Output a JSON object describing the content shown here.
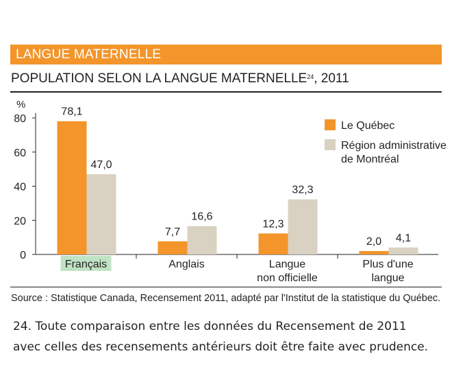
{
  "section_header": "LANGUE MATERNELLE",
  "chart_title": "POPULATION SELON LA LANGUE MATERNELLE",
  "chart_title_footnote": "24",
  "chart_title_year": ", 2011",
  "source": "Source : Statistique Canada, Recensement 2011, adapté par l'Institut de la statistique du Québec.",
  "footnote_lines": [
    "24. Toute comparaison entre les données du Recensement de 2011",
    "avec celles des recensements antérieurs doit être faite avec prudence."
  ],
  "colors": {
    "header_orange": "#f3952a",
    "series_quebec": "#f3952a",
    "series_montreal": "#d9d1c1",
    "highlight": "#bfe3c4"
  },
  "chart_data": {
    "type": "bar",
    "ylabel": "%",
    "ylim": [
      0,
      80
    ],
    "yticks": [
      0,
      20,
      40,
      60,
      80
    ],
    "categories": [
      [
        "Français"
      ],
      [
        "Anglais"
      ],
      [
        "Langue",
        "non officielle"
      ],
      [
        "Plus d'une",
        "langue"
      ]
    ],
    "series": [
      {
        "name": "Le Québec",
        "values": [
          78.1,
          7.7,
          12.3,
          2.0
        ],
        "labels": [
          "78,1",
          "7,7",
          "12,3",
          "2,0"
        ]
      },
      {
        "name": "Région administrative de Montréal",
        "name_lines": [
          "Région administrative",
          "de Montréal"
        ],
        "values": [
          47.0,
          16.6,
          32.3,
          4.1
        ],
        "labels": [
          "47,0",
          "16,6",
          "32,3",
          "4,1"
        ]
      }
    ],
    "legend_position": "top-right",
    "grid": false
  }
}
